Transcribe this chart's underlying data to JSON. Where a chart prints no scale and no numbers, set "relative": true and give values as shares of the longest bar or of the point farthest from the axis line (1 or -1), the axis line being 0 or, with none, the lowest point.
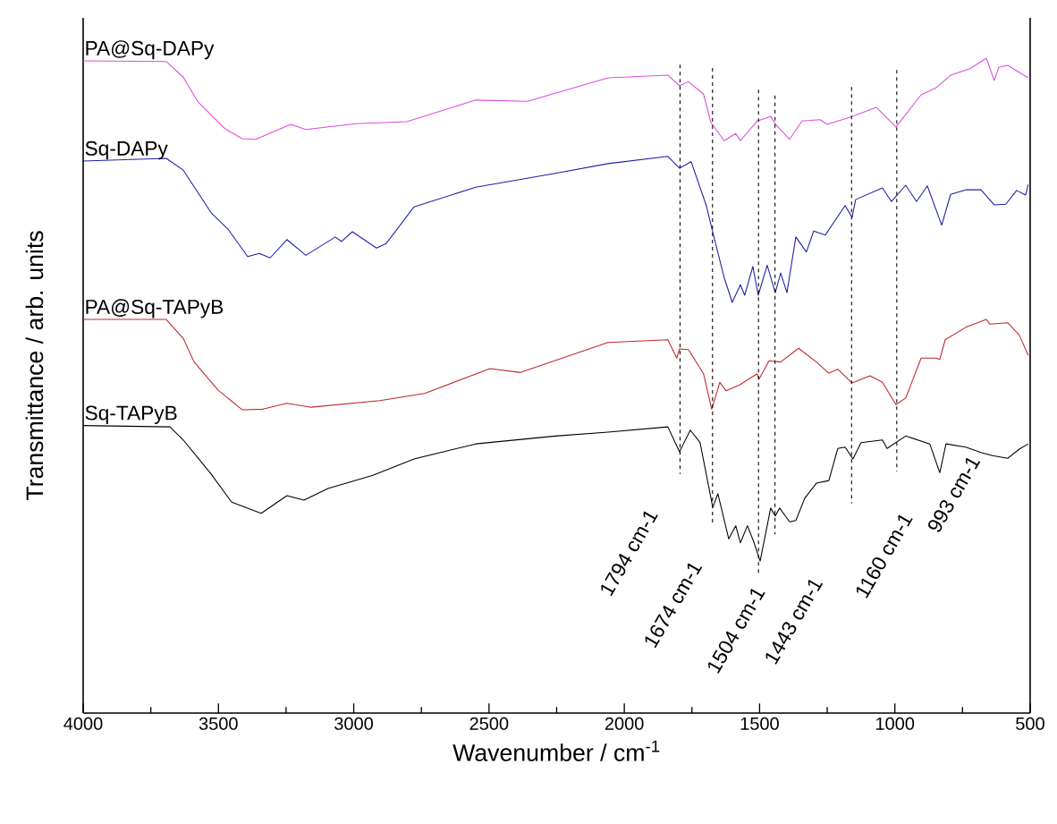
{
  "chart_data": {
    "type": "line",
    "relative": true,
    "xlabel": "Wavenumber / cm$^{-1}$",
    "ylabel": "Transmittance / arb. units",
    "xlim": [
      4000,
      500
    ],
    "xticks": [
      4000,
      {
        "value": 3750,
        "label": null
      },
      3500,
      {
        "value": 3250,
        "label": null
      },
      3000,
      {
        "value": 2750,
        "label": null
      },
      2500,
      {
        "value": 2250,
        "label": null
      },
      2000,
      {
        "value": 1750,
        "label": null
      },
      1500,
      {
        "value": 1250,
        "label": null
      },
      1000,
      {
        "value": 750,
        "label": null
      },
      500
    ],
    "tick_labels": "x",
    "line_style": "solid",
    "series": [
      {
        "name": "PA@Sq-DAPy",
        "color": "#d94fd9",
        "x": [
          4000,
          3693,
          3630,
          3577,
          3475,
          3412,
          3362,
          3233,
          3177,
          2992,
          2804,
          2549,
          2358,
          2060,
          1839,
          1796,
          1763,
          1707,
          1680,
          1631,
          1588,
          1571,
          1509,
          1459,
          1439,
          1389,
          1343,
          1277,
          1250,
          1158,
          1069,
          996,
          903,
          847,
          794,
          722,
          662,
          633,
          616,
          583,
          507
        ],
        "values": [
          0.996,
          0.995,
          0.971,
          0.934,
          0.892,
          0.877,
          0.876,
          0.899,
          0.891,
          0.9,
          0.903,
          0.936,
          0.934,
          0.97,
          0.974,
          0.958,
          0.964,
          0.945,
          0.902,
          0.874,
          0.885,
          0.874,
          0.904,
          0.911,
          0.898,
          0.876,
          0.904,
          0.906,
          0.899,
          0.911,
          0.925,
          0.895,
          0.944,
          0.955,
          0.974,
          0.984,
          1.0,
          0.966,
          0.986,
          0.989,
          0.97
        ]
      },
      {
        "name": "Sq-DAPy",
        "color": "#1f1fa8",
        "x": [
          4000,
          3693,
          3630,
          3527,
          3465,
          3392,
          3349,
          3309,
          3247,
          3177,
          3068,
          3045,
          3005,
          2916,
          2880,
          2777,
          2549,
          2255,
          2060,
          1839,
          1796,
          1753,
          1697,
          1673,
          1631,
          1601,
          1571,
          1555,
          1525,
          1505,
          1472,
          1442,
          1422,
          1399,
          1366,
          1327,
          1300,
          1257,
          1184,
          1158,
          1145,
          1046,
          1013,
          960,
          920,
          880,
          827,
          794,
          738,
          682,
          633,
          590,
          550,
          517,
          507
        ],
        "values": [
          0.843,
          0.847,
          0.829,
          0.764,
          0.739,
          0.697,
          0.702,
          0.695,
          0.723,
          0.699,
          0.727,
          0.72,
          0.735,
          0.71,
          0.717,
          0.773,
          0.803,
          0.824,
          0.839,
          0.85,
          0.832,
          0.842,
          0.775,
          0.734,
          0.665,
          0.627,
          0.654,
          0.638,
          0.682,
          0.638,
          0.684,
          0.642,
          0.672,
          0.642,
          0.727,
          0.704,
          0.736,
          0.73,
          0.775,
          0.757,
          0.784,
          0.802,
          0.781,
          0.806,
          0.781,
          0.805,
          0.745,
          0.792,
          0.799,
          0.799,
          0.776,
          0.777,
          0.798,
          0.791,
          0.807
        ]
      },
      {
        "name": "PA@Sq-TAPyB",
        "color": "#c0282a",
        "x": [
          4000,
          3693,
          3630,
          3590,
          3501,
          3412,
          3336,
          3247,
          3157,
          2903,
          2738,
          2496,
          2384,
          2060,
          1839,
          1806,
          1796,
          1763,
          1707,
          1677,
          1647,
          1624,
          1574,
          1509,
          1502,
          1465,
          1422,
          1356,
          1290,
          1244,
          1211,
          1158,
          1092,
          1046,
          996,
          960,
          903,
          847,
          834,
          814,
          738,
          662,
          649,
          583,
          540,
          507
        ],
        "values": [
          0.601,
          0.601,
          0.572,
          0.536,
          0.493,
          0.463,
          0.464,
          0.473,
          0.467,
          0.477,
          0.488,
          0.526,
          0.52,
          0.566,
          0.57,
          0.542,
          0.556,
          0.555,
          0.518,
          0.464,
          0.505,
          0.492,
          0.501,
          0.518,
          0.51,
          0.538,
          0.536,
          0.557,
          0.536,
          0.519,
          0.525,
          0.504,
          0.515,
          0.505,
          0.471,
          0.481,
          0.542,
          0.542,
          0.54,
          0.57,
          0.589,
          0.601,
          0.594,
          0.596,
          0.577,
          0.546
        ]
      },
      {
        "name": "Sq-TAPyB",
        "color": "#000000",
        "x": [
          4000,
          3679,
          3630,
          3527,
          3451,
          3342,
          3247,
          3184,
          3095,
          2929,
          2777,
          2549,
          2255,
          2060,
          1839,
          1796,
          1756,
          1720,
          1673,
          1654,
          1614,
          1588,
          1571,
          1545,
          1522,
          1498,
          1459,
          1442,
          1426,
          1389,
          1366,
          1333,
          1290,
          1244,
          1211,
          1184,
          1155,
          1125,
          1046,
          1029,
          960,
          871,
          834,
          811,
          738,
          682,
          639,
          583,
          540,
          507
        ],
        "values": [
          0.439,
          0.437,
          0.417,
          0.365,
          0.322,
          0.305,
          0.332,
          0.325,
          0.343,
          0.363,
          0.388,
          0.411,
          0.423,
          0.429,
          0.437,
          0.399,
          0.432,
          0.413,
          0.314,
          0.335,
          0.266,
          0.286,
          0.26,
          0.286,
          0.262,
          0.232,
          0.313,
          0.301,
          0.313,
          0.292,
          0.294,
          0.328,
          0.351,
          0.355,
          0.404,
          0.406,
          0.388,
          0.413,
          0.417,
          0.404,
          0.423,
          0.411,
          0.367,
          0.411,
          0.406,
          0.398,
          0.393,
          0.389,
          0.403,
          0.411
        ]
      }
    ],
    "ref_lines": [
      {
        "axis": "x",
        "value": 1794,
        "label": "1794 cm-1",
        "color": "#000000",
        "line_style": "dashed"
      },
      {
        "axis": "x",
        "value": 1674,
        "label": "1674 cm-1",
        "color": "#000000",
        "line_style": "dashed"
      },
      {
        "axis": "x",
        "value": 1504,
        "label": "1504 cm-1",
        "color": "#000000",
        "line_style": "dashed"
      },
      {
        "axis": "x",
        "value": 1443,
        "label": "1443 cm-1",
        "color": "#000000",
        "line_style": "dashed"
      },
      {
        "axis": "x",
        "value": 1160,
        "label": "1160 cm-1",
        "color": "#000000",
        "line_style": "dashed"
      },
      {
        "axis": "x",
        "value": 993,
        "label": "993 cm-1",
        "color": "#000000",
        "line_style": "dashed"
      }
    ]
  }
}
